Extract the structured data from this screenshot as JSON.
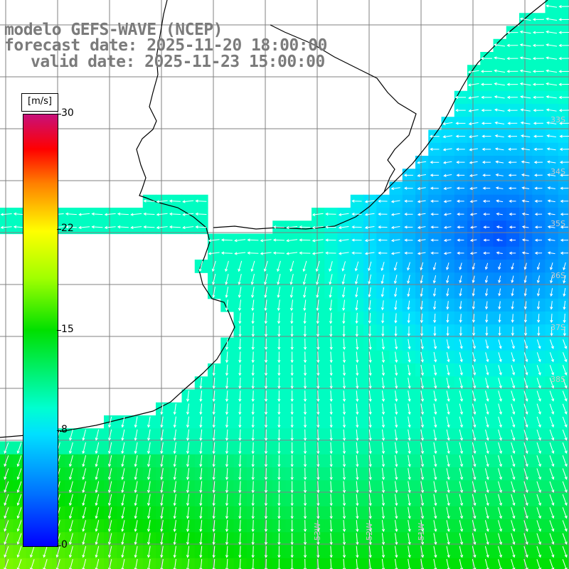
{
  "title": {
    "line1": "modelo GEFS-WAVE (NCEP)",
    "line2": "forecast date: 2025-11-20 18:00:00",
    "line3": "valid date: 2025-11-23 15:00:00"
  },
  "colorbar": {
    "unit": "[m/s]",
    "ticks": [
      {
        "label": "30",
        "value": 30
      },
      {
        "label": "22",
        "value": 22
      },
      {
        "label": "15",
        "value": 15
      },
      {
        "label": "8",
        "value": 8
      },
      {
        "label": "0",
        "value": 0
      }
    ],
    "range": [
      0,
      30
    ],
    "colors": [
      "#0000ff",
      "#0070ff",
      "#00e0ff",
      "#00ffd0",
      "#00e000",
      "#a0ff00",
      "#ffff00",
      "#ff8000",
      "#ff0000",
      "#c8107a"
    ]
  },
  "map": {
    "lat_labels": [
      "33S",
      "34S",
      "35S",
      "36S",
      "37S",
      "38S"
    ],
    "lon_labels": [
      "53W",
      "52W",
      "51W"
    ],
    "grid_color": "#808080",
    "coast_color": "#000000",
    "label_color": "#c8c8c8",
    "arrow_color": "#ffffff"
  }
}
